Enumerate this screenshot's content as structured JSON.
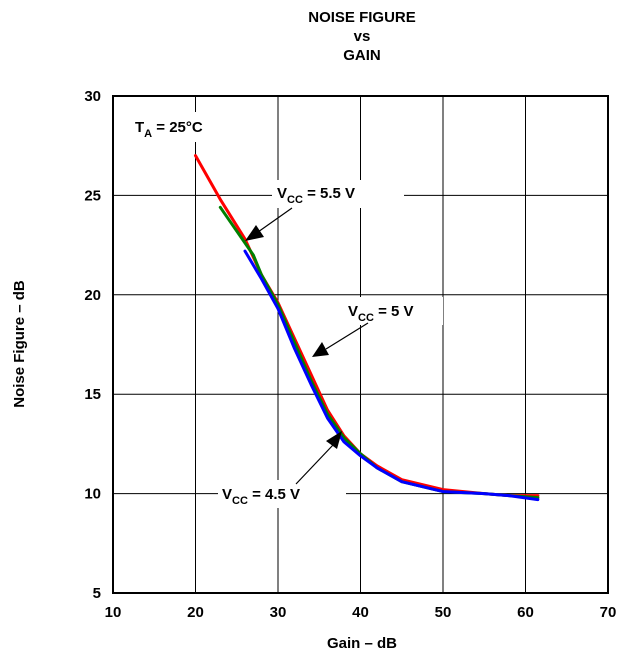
{
  "chart_data": {
    "type": "line",
    "title": [
      "NOISE FIGURE",
      "vs",
      "GAIN"
    ],
    "xlabel": "Gain – dB",
    "ylabel": "Noise Figure – dB",
    "xlim": [
      10,
      70
    ],
    "ylim": [
      5,
      30
    ],
    "xticks": [
      "10",
      "20",
      "30",
      "40",
      "50",
      "60",
      "70"
    ],
    "yticks": [
      "5",
      "10",
      "15",
      "20",
      "25",
      "30"
    ],
    "grid": true,
    "condition": {
      "main": "T",
      "sub": "A",
      "rest": " = 25°C"
    },
    "series": [
      {
        "name": "VCC = 5.5 V",
        "color": "#ff0000",
        "x": [
          20,
          23,
          26,
          28,
          30,
          32,
          34,
          36,
          38,
          40,
          42,
          45,
          50,
          55,
          58,
          61.5
        ],
        "y": [
          27.0,
          24.8,
          22.8,
          21.0,
          19.6,
          17.8,
          16.0,
          14.2,
          12.9,
          12.0,
          11.4,
          10.7,
          10.2,
          10.0,
          9.9,
          9.9
        ]
      },
      {
        "name": "VCC = 5 V",
        "color": "#008000",
        "x": [
          23,
          25,
          27,
          28,
          30,
          32,
          34,
          36,
          38,
          40,
          42,
          45,
          50,
          55,
          58,
          61.5
        ],
        "y": [
          24.4,
          23.2,
          22.0,
          21.0,
          19.5,
          17.6,
          15.7,
          14.0,
          12.8,
          12.0,
          11.3,
          10.6,
          10.1,
          10.0,
          9.9,
          9.8
        ]
      },
      {
        "name": "VCC = 4.5 V",
        "color": "#0000ff",
        "x": [
          26,
          28,
          30,
          32,
          34,
          36,
          38,
          40,
          42,
          45,
          50,
          55,
          58,
          61.5
        ],
        "y": [
          22.2,
          20.8,
          19.3,
          17.3,
          15.5,
          13.8,
          12.6,
          11.9,
          11.3,
          10.6,
          10.1,
          10.0,
          9.9,
          9.7
        ]
      }
    ],
    "annotations": [
      {
        "main": "V",
        "sub": "CC",
        "rest": " = 5.5 V"
      },
      {
        "main": "V",
        "sub": "CC",
        "rest": " = 5 V"
      },
      {
        "main": "V",
        "sub": "CC",
        "rest": " = 4.5 V"
      }
    ]
  }
}
